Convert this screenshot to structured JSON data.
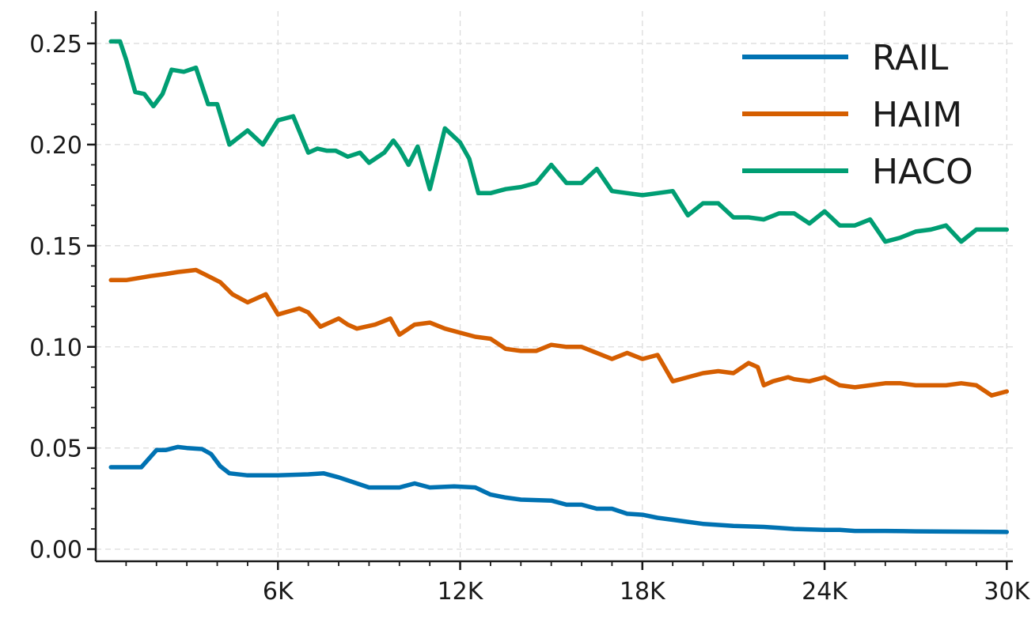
{
  "chart_data": {
    "type": "line",
    "title": "",
    "xlabel": "",
    "ylabel": "",
    "xlim": [
      0,
      30200
    ],
    "ylim": [
      -0.006,
      0.266
    ],
    "xticks": [
      6000,
      12000,
      18000,
      24000,
      30000
    ],
    "xtick_labels": [
      "6K",
      "12K",
      "18K",
      "24K",
      "30K"
    ],
    "yticks": [
      0.0,
      0.05,
      0.1,
      0.15,
      0.2,
      0.25
    ],
    "ytick_labels": [
      "0.00",
      "0.05",
      "0.10",
      "0.15",
      "0.20",
      "0.25"
    ],
    "grid": true,
    "legend_position": "top-right",
    "series": [
      {
        "name": "RAIL",
        "color": "#0072b2",
        "x": [
          500,
          1500,
          2000,
          2300,
          2700,
          3000,
          3500,
          3800,
          4100,
          4400,
          5000,
          6000,
          7000,
          7500,
          8000,
          8300,
          9000,
          9500,
          10000,
          10500,
          11000,
          11800,
          12500,
          13000,
          13500,
          14000,
          15000,
          15500,
          16000,
          16500,
          17000,
          17500,
          18000,
          18500,
          19000,
          19500,
          20000,
          21000,
          22000,
          22500,
          23000,
          24000,
          24500,
          25000,
          26000,
          27000,
          28000,
          29000,
          30000
        ],
        "values": [
          0.0405,
          0.0405,
          0.049,
          0.049,
          0.0505,
          0.05,
          0.0495,
          0.047,
          0.041,
          0.0375,
          0.0365,
          0.0365,
          0.037,
          0.0375,
          0.0355,
          0.034,
          0.0305,
          0.0305,
          0.0305,
          0.0325,
          0.0305,
          0.031,
          0.0305,
          0.027,
          0.0255,
          0.0245,
          0.024,
          0.022,
          0.022,
          0.02,
          0.02,
          0.0175,
          0.017,
          0.0155,
          0.0145,
          0.0135,
          0.0125,
          0.0115,
          0.011,
          0.0105,
          0.01,
          0.0095,
          0.0095,
          0.009,
          0.009,
          0.0088,
          0.0087,
          0.0086,
          0.0085
        ]
      },
      {
        "name": "HAIM",
        "color": "#d55e00",
        "x": [
          500,
          1000,
          1400,
          1800,
          2300,
          2700,
          3300,
          3700,
          4100,
          4500,
          5000,
          5600,
          6000,
          6700,
          7000,
          7400,
          7700,
          8000,
          8300,
          8600,
          9200,
          9700,
          10000,
          10500,
          11000,
          11500,
          12000,
          12500,
          13000,
          13500,
          14000,
          14500,
          15000,
          15500,
          16000,
          16500,
          17000,
          17500,
          18000,
          18500,
          19000,
          19500,
          20000,
          20500,
          21000,
          21500,
          21800,
          22000,
          22300,
          22800,
          23000,
          23500,
          24000,
          24500,
          25000,
          25500,
          26000,
          26500,
          27000,
          27500,
          28000,
          28500,
          29000,
          29500,
          30000
        ],
        "values": [
          0.133,
          0.133,
          0.134,
          0.135,
          0.136,
          0.137,
          0.138,
          0.135,
          0.132,
          0.126,
          0.122,
          0.126,
          0.116,
          0.119,
          0.117,
          0.11,
          0.112,
          0.114,
          0.111,
          0.109,
          0.111,
          0.114,
          0.106,
          0.111,
          0.112,
          0.109,
          0.107,
          0.105,
          0.104,
          0.099,
          0.098,
          0.098,
          0.101,
          0.1,
          0.1,
          0.097,
          0.094,
          0.097,
          0.094,
          0.096,
          0.083,
          0.085,
          0.087,
          0.088,
          0.087,
          0.092,
          0.09,
          0.081,
          0.083,
          0.085,
          0.084,
          0.083,
          0.085,
          0.081,
          0.08,
          0.081,
          0.082,
          0.082,
          0.081,
          0.081,
          0.081,
          0.082,
          0.081,
          0.076,
          0.078
        ]
      },
      {
        "name": "HACO",
        "color": "#009e73",
        "x": [
          500,
          800,
          1000,
          1300,
          1600,
          1900,
          2200,
          2500,
          2900,
          3300,
          3700,
          4000,
          4400,
          5000,
          5500,
          6000,
          6500,
          7000,
          7300,
          7600,
          7900,
          8300,
          8700,
          9000,
          9500,
          9800,
          10000,
          10300,
          10600,
          11000,
          11500,
          12000,
          12300,
          12600,
          13000,
          13500,
          14000,
          14500,
          15000,
          15500,
          16000,
          16500,
          17000,
          17500,
          18000,
          18500,
          19000,
          19500,
          20000,
          20500,
          21000,
          21500,
          22000,
          22500,
          23000,
          23500,
          24000,
          24500,
          25000,
          25500,
          26000,
          26500,
          27000,
          27500,
          28000,
          28500,
          29000,
          29500,
          30000
        ],
        "values": [
          0.251,
          0.251,
          0.242,
          0.226,
          0.225,
          0.219,
          0.225,
          0.237,
          0.236,
          0.238,
          0.22,
          0.22,
          0.2,
          0.207,
          0.2,
          0.212,
          0.214,
          0.196,
          0.198,
          0.197,
          0.197,
          0.194,
          0.196,
          0.191,
          0.196,
          0.202,
          0.198,
          0.19,
          0.199,
          0.178,
          0.208,
          0.201,
          0.193,
          0.176,
          0.176,
          0.178,
          0.179,
          0.181,
          0.19,
          0.181,
          0.181,
          0.188,
          0.177,
          0.176,
          0.175,
          0.176,
          0.177,
          0.165,
          0.171,
          0.171,
          0.164,
          0.164,
          0.163,
          0.166,
          0.166,
          0.161,
          0.167,
          0.16,
          0.16,
          0.163,
          0.152,
          0.154,
          0.157,
          0.158,
          0.16,
          0.152,
          0.158,
          0.158,
          0.158
        ]
      }
    ]
  }
}
